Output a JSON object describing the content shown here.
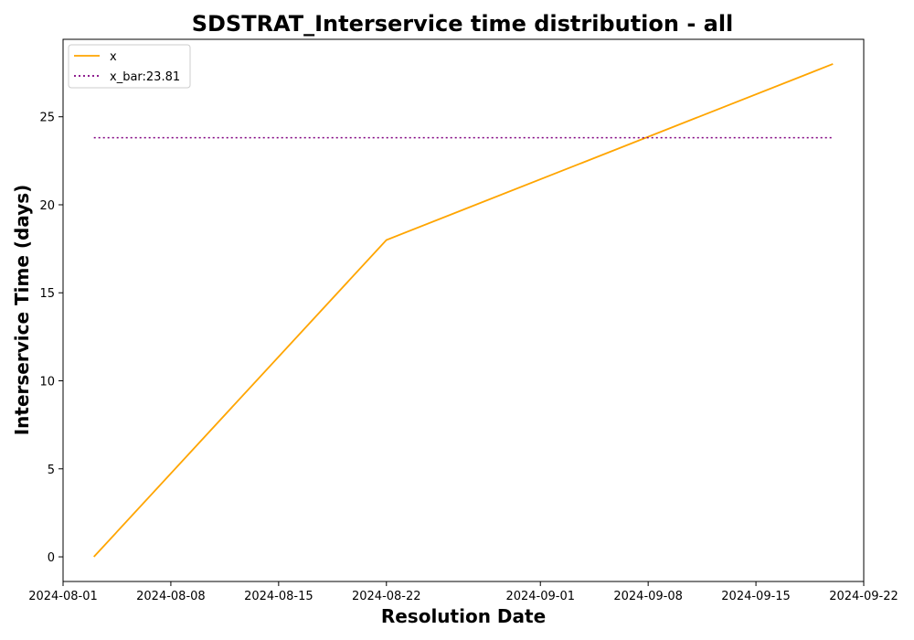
{
  "chart_data": {
    "type": "line",
    "title": "SDSTRAT_Interservice time distribution - all",
    "xlabel": "Resolution Date",
    "ylabel": "Interservice Time (days)",
    "x_scale": "date",
    "xlim": [
      "2024-08-01",
      "2024-09-22"
    ],
    "ylim": [
      -1.4,
      29.4
    ],
    "x_ticks": [
      "2024-08-01",
      "2024-08-08",
      "2024-08-15",
      "2024-08-22",
      "2024-09-01",
      "2024-09-08",
      "2024-09-15",
      "2024-09-22"
    ],
    "y_ticks": [
      0,
      5,
      10,
      15,
      20,
      25
    ],
    "grid": false,
    "legend_position": "upper-left",
    "series": [
      {
        "name": "x",
        "style": "solid",
        "color": "#ffa500",
        "x": [
          "2024-08-03",
          "2024-08-22",
          "2024-09-20"
        ],
        "y": [
          0,
          18,
          28
        ]
      },
      {
        "name": "x_bar:23.81",
        "style": "dotted",
        "color": "#800080",
        "x": [
          "2024-08-03",
          "2024-09-20"
        ],
        "y": [
          23.81,
          23.81
        ]
      }
    ]
  }
}
